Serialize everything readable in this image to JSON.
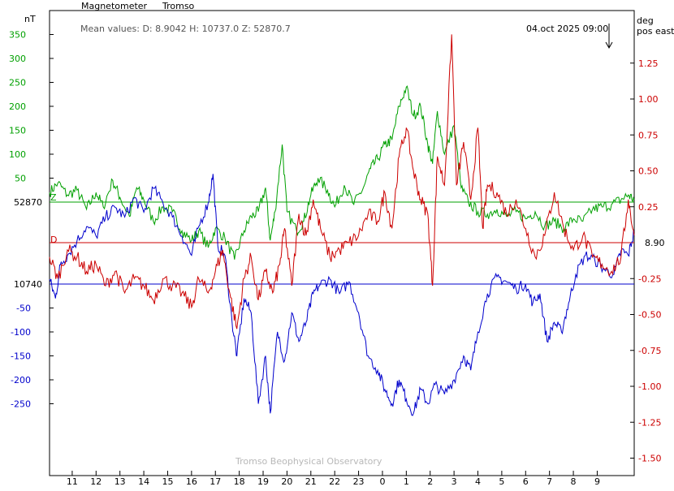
{
  "header": {
    "instrument": "Magnetometer",
    "station": "Tromso",
    "mean_values": "Mean values:  D: 8.9042    H: 10737.0    Z: 52870.7",
    "timestamp": "04.oct 2025 09:00",
    "watermark": "Tromso Beophysical Observatory"
  },
  "colors": {
    "z": "#00a000",
    "h": "#0000cc",
    "d": "#cc0000",
    "axis": "#000000",
    "watermark": "#b8b8b8"
  },
  "chart_data": {
    "type": "line",
    "x_unit_label": "",
    "x_ticks": [
      "11",
      "12",
      "13",
      "14",
      "15",
      "16",
      "17",
      "18",
      "19",
      "20",
      "21",
      "22",
      "23",
      "0",
      "1",
      "2",
      "3",
      "4",
      "5",
      "6",
      "7",
      "8",
      "9"
    ],
    "x_range_hours": [
      10.05,
      34.55
    ],
    "left_axis": {
      "unit_label": "nT",
      "ticks_z": [
        50,
        100,
        150,
        200,
        250,
        300,
        350
      ],
      "ticks_h": [
        -50,
        -100,
        -150,
        -200,
        -250
      ],
      "range": [
        -350,
        400
      ],
      "baseline_z_label": "52870",
      "baseline_h_label": "10740"
    },
    "right_axis": {
      "unit_label_1": "deg",
      "unit_label_2": "pos east",
      "ticks": [
        1.25,
        1.0,
        0.75,
        0.5,
        0.25,
        -0.25,
        -0.5,
        -0.75,
        -1.0,
        -1.25,
        -1.5
      ],
      "tick_labels": [
        "1.25",
        "1.00",
        "0.75",
        "0.50",
        "0.25",
        "-0.25",
        "-0.50",
        "-0.75",
        "-1.00",
        "-1.25",
        "-1.50"
      ],
      "range": [
        -1.65,
        1.6
      ],
      "baseline_label": "8.90"
    },
    "series": [
      {
        "key": "z",
        "side": "left",
        "baseline_offset": 0,
        "marker": "Z",
        "points": [
          [
            10.05,
            20
          ],
          [
            10.4,
            40
          ],
          [
            10.8,
            15
          ],
          [
            11.2,
            25
          ],
          [
            11.6,
            -15
          ],
          [
            12.0,
            20
          ],
          [
            12.3,
            -10
          ],
          [
            12.7,
            45
          ],
          [
            13.0,
            10
          ],
          [
            13.4,
            -30
          ],
          [
            13.7,
            30
          ],
          [
            14.0,
            5
          ],
          [
            14.4,
            -40
          ],
          [
            14.8,
            -10
          ],
          [
            15.2,
            -20
          ],
          [
            15.6,
            -60
          ],
          [
            16.0,
            -80
          ],
          [
            16.3,
            -60
          ],
          [
            16.7,
            -95
          ],
          [
            17.0,
            -55
          ],
          [
            17.4,
            -75
          ],
          [
            17.8,
            -120
          ],
          [
            18.2,
            -60
          ],
          [
            18.5,
            -30
          ],
          [
            18.8,
            -20
          ],
          [
            19.1,
            30
          ],
          [
            19.3,
            -80
          ],
          [
            19.5,
            -20
          ],
          [
            19.8,
            120
          ],
          [
            20.0,
            -20
          ],
          [
            20.4,
            -60
          ],
          [
            20.7,
            -40
          ],
          [
            21.0,
            15
          ],
          [
            21.3,
            50
          ],
          [
            21.7,
            25
          ],
          [
            22.0,
            -10
          ],
          [
            22.4,
            35
          ],
          [
            22.8,
            -5
          ],
          [
            23.2,
            30
          ],
          [
            23.5,
            70
          ],
          [
            23.8,
            90
          ],
          [
            24.1,
            120
          ],
          [
            24.4,
            130
          ],
          [
            24.7,
            200
          ],
          [
            25.0,
            240
          ],
          [
            25.3,
            180
          ],
          [
            25.6,
            200
          ],
          [
            25.9,
            120
          ],
          [
            26.1,
            80
          ],
          [
            26.3,
            190
          ],
          [
            26.6,
            100
          ],
          [
            27.0,
            160
          ],
          [
            27.3,
            30
          ],
          [
            27.6,
            0
          ],
          [
            28.0,
            -20
          ],
          [
            28.4,
            -25
          ],
          [
            28.8,
            -15
          ],
          [
            29.2,
            -30
          ],
          [
            29.6,
            -20
          ],
          [
            30.0,
            -35
          ],
          [
            30.4,
            -20
          ],
          [
            30.8,
            -50
          ],
          [
            31.2,
            -40
          ],
          [
            31.6,
            -55
          ],
          [
            32.0,
            -35
          ],
          [
            32.4,
            -40
          ],
          [
            32.8,
            -15
          ],
          [
            33.2,
            -10
          ],
          [
            33.6,
            -5
          ],
          [
            34.0,
            5
          ],
          [
            34.3,
            15
          ],
          [
            34.55,
            5
          ]
        ]
      },
      {
        "key": "h",
        "side": "left",
        "baseline_offset": 0,
        "marker": "",
        "points": [
          [
            10.05,
            10
          ],
          [
            10.3,
            -30
          ],
          [
            10.5,
            40
          ],
          [
            10.8,
            60
          ],
          [
            11.2,
            90
          ],
          [
            11.6,
            120
          ],
          [
            12.0,
            100
          ],
          [
            12.4,
            140
          ],
          [
            12.8,
            160
          ],
          [
            13.2,
            140
          ],
          [
            13.6,
            180
          ],
          [
            14.0,
            150
          ],
          [
            14.4,
            200
          ],
          [
            14.8,
            170
          ],
          [
            15.2,
            140
          ],
          [
            15.6,
            100
          ],
          [
            16.0,
            60
          ],
          [
            16.3,
            120
          ],
          [
            16.7,
            170
          ],
          [
            16.9,
            230
          ],
          [
            17.1,
            80
          ],
          [
            17.4,
            60
          ],
          [
            17.7,
            -80
          ],
          [
            17.9,
            -150
          ],
          [
            18.2,
            -30
          ],
          [
            18.5,
            -60
          ],
          [
            18.8,
            -250
          ],
          [
            19.1,
            -150
          ],
          [
            19.3,
            -270
          ],
          [
            19.6,
            -100
          ],
          [
            19.9,
            -160
          ],
          [
            20.2,
            -60
          ],
          [
            20.5,
            -120
          ],
          [
            20.8,
            -80
          ],
          [
            21.1,
            -20
          ],
          [
            21.4,
            0
          ],
          [
            21.8,
            10
          ],
          [
            22.2,
            -20
          ],
          [
            22.6,
            5
          ],
          [
            23.0,
            -60
          ],
          [
            23.4,
            -150
          ],
          [
            23.8,
            -180
          ],
          [
            24.1,
            -220
          ],
          [
            24.4,
            -250
          ],
          [
            24.7,
            -200
          ],
          [
            25.0,
            -240
          ],
          [
            25.3,
            -270
          ],
          [
            25.6,
            -220
          ],
          [
            25.9,
            -250
          ],
          [
            26.2,
            -210
          ],
          [
            26.6,
            -230
          ],
          [
            27.0,
            -200
          ],
          [
            27.4,
            -150
          ],
          [
            27.7,
            -180
          ],
          [
            28.0,
            -100
          ],
          [
            28.4,
            -20
          ],
          [
            28.8,
            15
          ],
          [
            29.2,
            5
          ],
          [
            29.6,
            -10
          ],
          [
            30.0,
            0
          ],
          [
            30.3,
            -40
          ],
          [
            30.6,
            -20
          ],
          [
            30.9,
            -120
          ],
          [
            31.2,
            -80
          ],
          [
            31.5,
            -100
          ],
          [
            31.8,
            -40
          ],
          [
            32.1,
            20
          ],
          [
            32.5,
            60
          ],
          [
            32.9,
            50
          ],
          [
            33.3,
            30
          ],
          [
            33.7,
            20
          ],
          [
            34.0,
            70
          ],
          [
            34.3,
            60
          ],
          [
            34.55,
            110
          ]
        ]
      },
      {
        "key": "d",
        "side": "right",
        "baseline_offset": 0,
        "marker": "D",
        "points": [
          [
            10.05,
            -0.1
          ],
          [
            10.4,
            -0.25
          ],
          [
            10.8,
            -0.05
          ],
          [
            11.2,
            -0.1
          ],
          [
            11.6,
            -0.2
          ],
          [
            12.0,
            -0.15
          ],
          [
            12.4,
            -0.3
          ],
          [
            12.8,
            -0.2
          ],
          [
            13.2,
            -0.35
          ],
          [
            13.6,
            -0.25
          ],
          [
            14.0,
            -0.3
          ],
          [
            14.4,
            -0.4
          ],
          [
            14.8,
            -0.25
          ],
          [
            15.2,
            -0.3
          ],
          [
            15.6,
            -0.35
          ],
          [
            16.0,
            -0.45
          ],
          [
            16.3,
            -0.25
          ],
          [
            16.7,
            -0.35
          ],
          [
            17.0,
            -0.2
          ],
          [
            17.3,
            -0.05
          ],
          [
            17.6,
            -0.35
          ],
          [
            17.9,
            -0.6
          ],
          [
            18.2,
            -0.25
          ],
          [
            18.5,
            -0.1
          ],
          [
            18.8,
            -0.4
          ],
          [
            19.1,
            -0.2
          ],
          [
            19.4,
            -0.35
          ],
          [
            19.7,
            -0.15
          ],
          [
            19.9,
            0.1
          ],
          [
            20.2,
            -0.3
          ],
          [
            20.5,
            0.2
          ],
          [
            20.8,
            0.05
          ],
          [
            21.1,
            0.3
          ],
          [
            21.4,
            0.1
          ],
          [
            21.8,
            -0.1
          ],
          [
            22.2,
            -0.05
          ],
          [
            22.6,
            0.0
          ],
          [
            23.0,
            0.05
          ],
          [
            23.4,
            0.2
          ],
          [
            23.8,
            0.15
          ],
          [
            24.1,
            0.35
          ],
          [
            24.4,
            0.1
          ],
          [
            24.7,
            0.6
          ],
          [
            25.0,
            0.8
          ],
          [
            25.3,
            0.5
          ],
          [
            25.6,
            0.3
          ],
          [
            25.9,
            0.2
          ],
          [
            26.1,
            -0.3
          ],
          [
            26.3,
            0.6
          ],
          [
            26.6,
            0.4
          ],
          [
            26.9,
            1.45
          ],
          [
            27.1,
            0.4
          ],
          [
            27.4,
            0.7
          ],
          [
            27.7,
            0.3
          ],
          [
            28.0,
            0.8
          ],
          [
            28.2,
            0.1
          ],
          [
            28.4,
            0.4
          ],
          [
            28.8,
            0.35
          ],
          [
            29.2,
            0.2
          ],
          [
            29.6,
            0.3
          ],
          [
            30.0,
            0.1
          ],
          [
            30.4,
            -0.1
          ],
          [
            30.8,
            0.05
          ],
          [
            31.2,
            0.35
          ],
          [
            31.6,
            0.1
          ],
          [
            32.0,
            -0.05
          ],
          [
            32.4,
            0.05
          ],
          [
            32.8,
            -0.1
          ],
          [
            33.2,
            -0.15
          ],
          [
            33.6,
            -0.2
          ],
          [
            34.0,
            -0.1
          ],
          [
            34.3,
            0.3
          ],
          [
            34.55,
            0.05
          ]
        ]
      }
    ]
  }
}
